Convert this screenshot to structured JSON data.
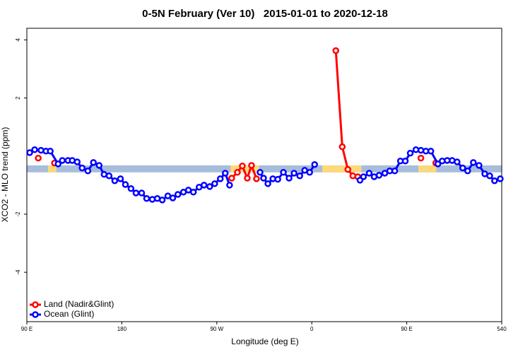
{
  "chart_data": {
    "type": "line",
    "title": "0-5N February (Ver 10)   2015-01-01 to 2020-12-18",
    "x_label": "Longitude (deg E)",
    "y_label": "XCO2 - MLO trend (ppm)",
    "xlim": [
      90,
      540
    ],
    "ylim": [
      -5.7,
      4.4
    ],
    "xticks": [
      {
        "value": 90,
        "label": "90 E"
      },
      180,
      {
        "value": 270,
        "label": "90 W"
      },
      {
        "value": 360,
        "label": "0"
      },
      {
        "value": 450,
        "label": "90 E"
      },
      540
    ],
    "yticks": [
      -4,
      -2,
      2,
      4
    ],
    "ocean_band": {
      "color": "#a6bddb",
      "range": [
        -0.56,
        -0.32
      ]
    },
    "land_spans": {
      "color": "#fdd97c",
      "spans": [
        [
          110,
          118
        ],
        [
          283,
          310
        ],
        [
          370,
          407
        ],
        [
          461,
          478
        ]
      ]
    },
    "legend": "bottom-left",
    "series": [
      {
        "name": "Land (Nadir&Glint)",
        "color": "#ff0000",
        "x": [
          100.8,
          null,
          116.2,
          null,
          284.1,
          289.5,
          294.2,
          298.9,
          302.9,
          307.6,
          null,
          382.8,
          388.9,
          394.2,
          398.9,
          403.6,
          null,
          463.4,
          null,
          477.5
        ],
        "values": [
          -0.07,
          null,
          -0.24,
          null,
          -0.76,
          -0.56,
          -0.34,
          -0.76,
          -0.32,
          -0.78,
          null,
          3.63,
          0.32,
          -0.46,
          -0.68,
          -0.71,
          null,
          -0.07,
          null,
          -0.24
        ]
      },
      {
        "name": "Ocean (Glint)",
        "color": "#0000ff",
        "x": [
          92.7,
          97.4,
          103.4,
          108.1,
          112.2,
          119.6,
          123.6,
          129.0,
          133.0,
          137.7,
          142.4,
          147.8,
          153.1,
          158.5,
          163.2,
          167.9,
          173.3,
          178.7,
          183.4,
          188.7,
          193.4,
          198.8,
          203.5,
          208.9,
          213.6,
          218.3,
          223.6,
          228.3,
          233.1,
          238.4,
          243.1,
          247.8,
          253.2,
          257.9,
          263.3,
          268.0,
          273.3,
          278.0,
          282.1,
          null,
          311.0,
          314.3,
          318.4,
          323.1,
          327.8,
          333.1,
          338.5,
          343.2,
          348.6,
          353.3,
          358.0,
          362.7,
          null,
          405.7,
          409.0,
          414.4,
          419.1,
          423.8,
          429.2,
          433.9,
          438.6,
          444.0,
          448.6,
          453.3,
          458.7,
          463.4,
          468.1,
          472.8,
          479.5,
          483.6,
          488.3,
          493.0,
          497.7,
          503.0,
          507.7,
          513.1,
          518.5,
          523.9,
          528.6,
          533.2,
          538.6
        ],
        "values": [
          0.12,
          0.22,
          0.2,
          0.17,
          0.17,
          -0.27,
          -0.15,
          -0.15,
          -0.15,
          -0.2,
          -0.41,
          -0.51,
          -0.22,
          -0.32,
          -0.63,
          -0.68,
          -0.85,
          -0.78,
          -0.98,
          -1.12,
          -1.27,
          -1.27,
          -1.46,
          -1.49,
          -1.46,
          -1.51,
          -1.37,
          -1.44,
          -1.32,
          -1.24,
          -1.17,
          -1.24,
          -1.07,
          -1.0,
          -1.05,
          -0.95,
          -0.78,
          -0.59,
          -1.0,
          null,
          -0.56,
          -0.76,
          -0.95,
          -0.78,
          -0.8,
          -0.56,
          -0.76,
          -0.59,
          -0.68,
          -0.49,
          -0.56,
          -0.29,
          null,
          -0.83,
          -0.71,
          -0.59,
          -0.71,
          -0.66,
          -0.59,
          -0.51,
          -0.51,
          -0.17,
          -0.17,
          0.1,
          0.22,
          0.2,
          0.17,
          0.17,
          -0.27,
          -0.17,
          -0.15,
          -0.15,
          -0.2,
          -0.41,
          -0.51,
          -0.22,
          -0.32,
          -0.61,
          -0.68,
          -0.85,
          -0.78
        ]
      }
    ]
  }
}
